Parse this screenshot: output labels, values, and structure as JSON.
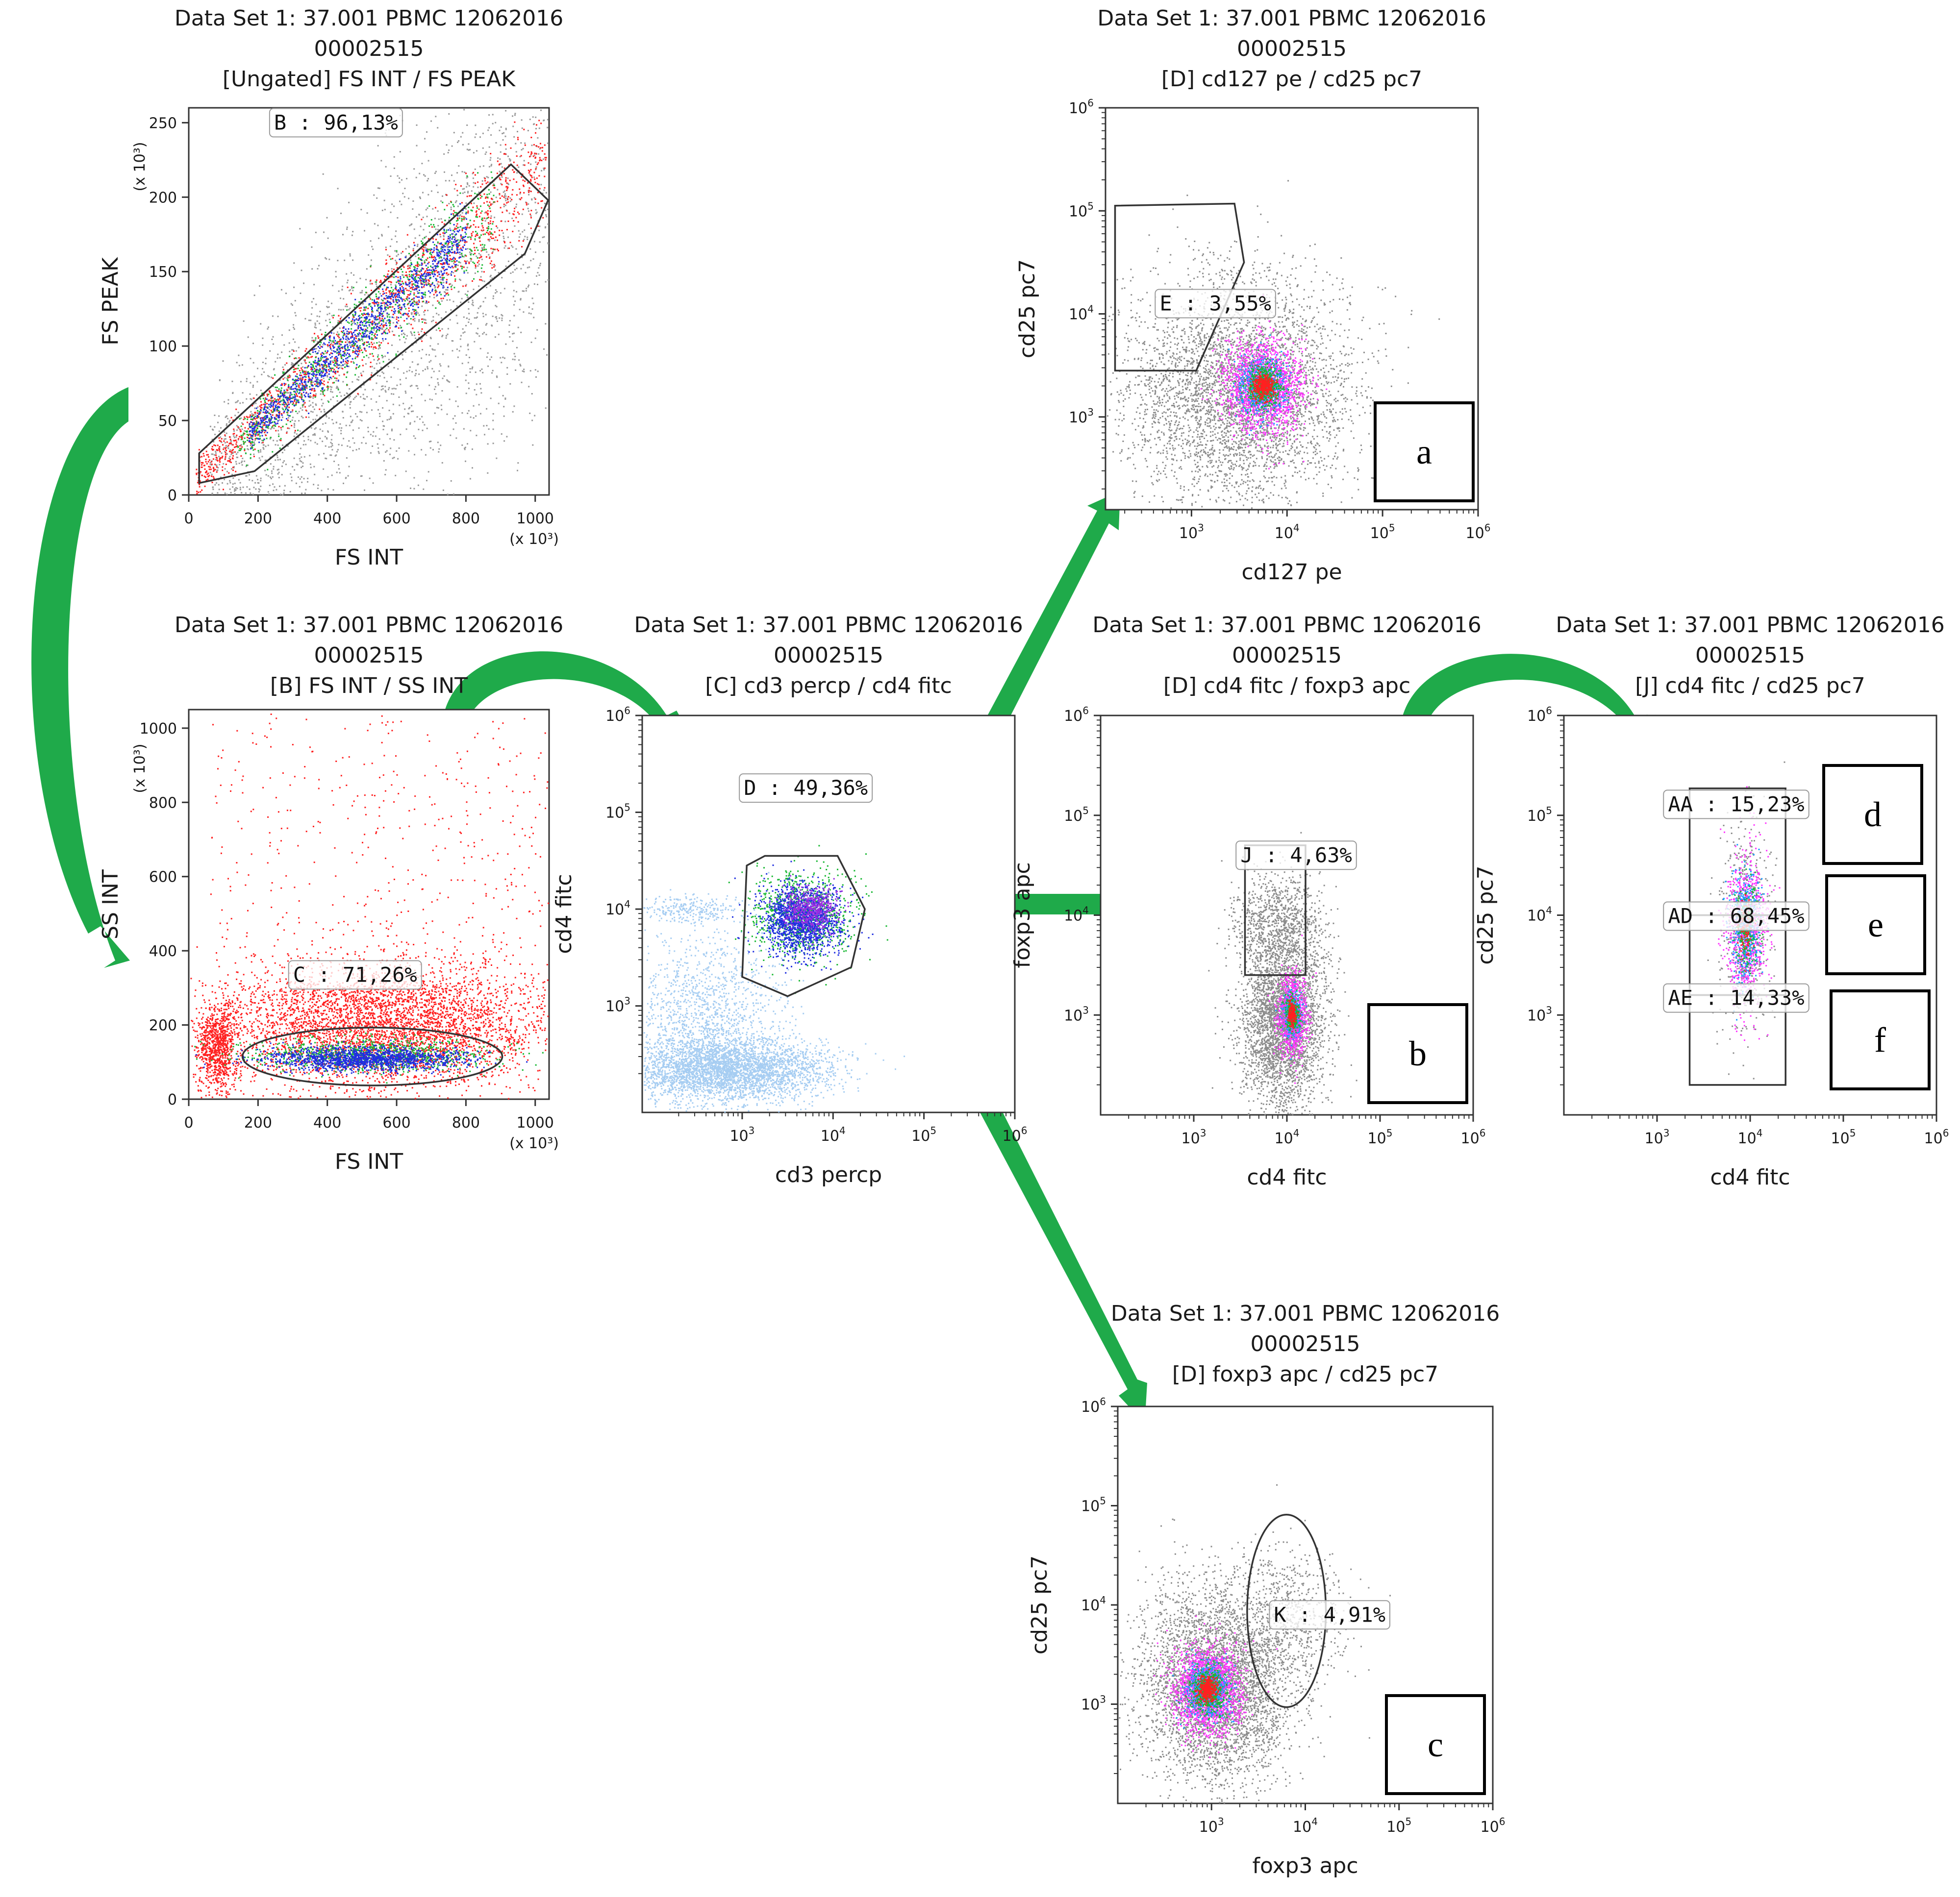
{
  "figure": {
    "plot_labels": [
      "a",
      "b",
      "c",
      "d",
      "e",
      "f"
    ],
    "arrow_color": "#1faa4a"
  },
  "chart_data": [
    {
      "id": "p1",
      "type": "scatter",
      "title": [
        "Data Set 1: 37.001 PBMC 12062016",
        "00002515",
        "[Ungated] FS INT / FS PEAK"
      ],
      "xlabel": "FS INT",
      "ylabel": "FS PEAK",
      "xscale": "linear",
      "yscale": "linear",
      "xlim": [
        0,
        1040
      ],
      "ylim": [
        0,
        260
      ],
      "xticks": [
        0,
        200,
        400,
        600,
        800,
        1000
      ],
      "yticks": [
        0,
        50,
        100,
        150,
        200,
        250
      ],
      "x_multiplier": "(x 10³)",
      "y_multiplier": "(x 10³)",
      "populations": [
        {
          "color": "#9a9a9a",
          "n": 2600,
          "dist": "band",
          "x": [
            60,
            1040
          ],
          "slope": 0.205,
          "offset": -12,
          "spread": 55
        },
        {
          "color": "#ff2020",
          "n": 1400,
          "dist": "band",
          "x": [
            20,
            1030
          ],
          "slope": 0.208,
          "offset": 8,
          "spread": 14
        },
        {
          "color": "#19b833",
          "n": 800,
          "dist": "band",
          "x": [
            140,
            880
          ],
          "slope": 0.21,
          "offset": 6,
          "spread": 13
        },
        {
          "color": "#1f2ee0",
          "n": 1000,
          "dist": "band",
          "x": [
            170,
            800
          ],
          "slope": 0.21,
          "offset": 6,
          "spread": 9
        }
      ],
      "gates": [
        {
          "name": "B",
          "percent": "96,13%",
          "label": "B : 96,13%",
          "shape": "polygon",
          "points": [
            [
              30,
              28
            ],
            [
              930,
              222
            ],
            [
              1040,
              198
            ],
            [
              970,
              162
            ],
            [
              190,
              16
            ],
            [
              30,
              8
            ]
          ],
          "label_at": [
            425,
            250
          ]
        }
      ]
    },
    {
      "id": "p2",
      "type": "scatter",
      "title": [
        "Data Set 1: 37.001 PBMC 12062016",
        "00002515",
        "[B] FS INT / SS INT"
      ],
      "xlabel": "FS INT",
      "ylabel": "SS INT",
      "xscale": "linear",
      "yscale": "linear",
      "xlim": [
        0,
        1040
      ],
      "ylim": [
        0,
        1050
      ],
      "xticks": [
        0,
        200,
        400,
        600,
        800,
        1000
      ],
      "yticks": [
        0,
        200,
        400,
        600,
        800,
        1000
      ],
      "x_multiplier": "(x 10³)",
      "y_multiplier": "(x 10³)",
      "populations": [
        {
          "color": "#ff2020",
          "n": 450,
          "dist": "uniform",
          "x": [
            60,
            1040
          ],
          "y": [
            250,
            1040
          ]
        },
        {
          "color": "#ff2020",
          "n": 4500,
          "dist": "gauss",
          "cx": 560,
          "cy": 200,
          "sx": 250,
          "sy": 85
        },
        {
          "color": "#ff2020",
          "n": 900,
          "dist": "gauss",
          "cx": 80,
          "cy": 140,
          "sx": 30,
          "sy": 60
        },
        {
          "color": "#19b833",
          "n": 900,
          "dist": "gauss",
          "cx": 520,
          "cy": 120,
          "sx": 170,
          "sy": 22
        },
        {
          "color": "#1f2ee0",
          "n": 1400,
          "dist": "gauss",
          "cx": 500,
          "cy": 110,
          "sx": 140,
          "sy": 16
        }
      ],
      "gates": [
        {
          "name": "C",
          "percent": "71,26%",
          "label": "C : 71,26%",
          "shape": "ellipse",
          "center": [
            530,
            115
          ],
          "rx": 375,
          "ry": 78,
          "label_at": [
            480,
            335
          ]
        }
      ]
    },
    {
      "id": "p3",
      "type": "scatter",
      "title": [
        "Data Set 1: 37.001 PBMC 12062016",
        "00002515",
        "[C] cd3 percp / cd4 fitc"
      ],
      "xlabel": "cd3 percp",
      "ylabel": "cd4 fitc",
      "xscale": "log",
      "yscale": "log",
      "xlim": [
        1.9,
        6.0
      ],
      "ylim": [
        1.9,
        6.0
      ],
      "xticks": [
        3,
        4,
        5,
        6
      ],
      "yticks": [
        3,
        4,
        5,
        6
      ],
      "populations": [
        {
          "color": "#a6cdf2",
          "n": 3400,
          "dist": "gauss",
          "cx": 2.85,
          "cy": 2.35,
          "sx": 0.55,
          "sy": 0.16
        },
        {
          "color": "#a6cdf2",
          "n": 1400,
          "dist": "gauss",
          "cx": 2.6,
          "cy": 2.9,
          "sx": 0.45,
          "sy": 0.45
        },
        {
          "color": "#a6cdf2",
          "n": 250,
          "dist": "gauss",
          "cx": 2.4,
          "cy": 4.0,
          "sx": 0.3,
          "sy": 0.08
        },
        {
          "color": "#19b833",
          "n": 900,
          "dist": "gauss",
          "cx": 3.65,
          "cy": 3.95,
          "sx": 0.28,
          "sy": 0.22
        },
        {
          "color": "#1f2ee0",
          "n": 1400,
          "dist": "gauss",
          "cx": 3.65,
          "cy": 3.9,
          "sx": 0.22,
          "sy": 0.18
        },
        {
          "color": "#9b2fe0",
          "n": 500,
          "dist": "gauss",
          "cx": 3.75,
          "cy": 4.0,
          "sx": 0.15,
          "sy": 0.12
        }
      ],
      "gates": [
        {
          "name": "D",
          "percent": "49,36%",
          "label": "D : 49,36%",
          "shape": "polygon",
          "points": [
            [
              3.05,
              4.45
            ],
            [
              3.25,
              4.55
            ],
            [
              4.05,
              4.55
            ],
            [
              4.35,
              4.0
            ],
            [
              4.2,
              3.4
            ],
            [
              3.5,
              3.1
            ],
            [
              3.0,
              3.3
            ],
            [
              3.05,
              4.45
            ]
          ],
          "label_at": [
            3.7,
            5.25
          ]
        }
      ]
    },
    {
      "id": "p4",
      "type": "scatter",
      "title": [
        "Data Set 1: 37.001 PBMC 12062016",
        "00002515",
        "[D] cd127 pe / cd25 pc7"
      ],
      "xlabel": "cd127 pe",
      "ylabel": "cd25 pc7",
      "xscale": "log",
      "yscale": "log",
      "xlim": [
        2.1,
        6.0
      ],
      "ylim": [
        2.1,
        6.0
      ],
      "xticks": [
        3,
        4,
        5,
        6
      ],
      "yticks": [
        3,
        4,
        5,
        6
      ],
      "populations": [
        {
          "color": "#8c8c8c",
          "n": 4200,
          "dist": "gauss",
          "cx": 3.5,
          "cy": 3.25,
          "sx": 0.6,
          "sy": 0.55
        },
        {
          "color": "#ff35ff",
          "n": 1800,
          "dist": "gauss",
          "cx": 3.75,
          "cy": 3.3,
          "sx": 0.2,
          "sy": 0.22
        },
        {
          "color": "#1a9cff",
          "n": 600,
          "dist": "gauss",
          "cx": 3.75,
          "cy": 3.3,
          "sx": 0.12,
          "sy": 0.14
        },
        {
          "color": "#19b833",
          "n": 500,
          "dist": "gauss",
          "cx": 3.75,
          "cy": 3.3,
          "sx": 0.09,
          "sy": 0.1
        },
        {
          "color": "#ff2020",
          "n": 350,
          "dist": "gauss",
          "cx": 3.75,
          "cy": 3.3,
          "sx": 0.05,
          "sy": 0.06
        }
      ],
      "gates": [
        {
          "name": "E",
          "percent": "3,55%",
          "label": "E : 3,55%",
          "shape": "polygon",
          "points": [
            [
              2.2,
              5.05
            ],
            [
              3.45,
              5.07
            ],
            [
              3.55,
              4.5
            ],
            [
              3.05,
              3.45
            ],
            [
              2.2,
              3.45
            ],
            [
              2.2,
              5.05
            ]
          ],
          "label_at": [
            3.25,
            4.1
          ]
        }
      ]
    },
    {
      "id": "p5",
      "type": "scatter",
      "title": [
        "Data Set 1: 37.001 PBMC 12062016",
        "00002515",
        "[D] cd4 fitc / foxp3 apc"
      ],
      "xlabel": "cd4 fitc",
      "ylabel": "foxp3 apc",
      "xscale": "log",
      "yscale": "log",
      "xlim": [
        2.0,
        6.0
      ],
      "ylim": [
        2.0,
        6.0
      ],
      "xticks": [
        3,
        4,
        5,
        6
      ],
      "yticks": [
        3,
        4,
        5,
        6
      ],
      "populations": [
        {
          "color": "#8c8c8c",
          "n": 3300,
          "dist": "gauss",
          "cx": 3.95,
          "cy": 2.95,
          "sx": 0.22,
          "sy": 0.45
        },
        {
          "color": "#8c8c8c",
          "n": 800,
          "dist": "gauss",
          "cx": 3.9,
          "cy": 3.95,
          "sx": 0.25,
          "sy": 0.25
        },
        {
          "color": "#ff35ff",
          "n": 900,
          "dist": "gauss",
          "cx": 4.05,
          "cy": 3.0,
          "sx": 0.08,
          "sy": 0.2
        },
        {
          "color": "#1a9cff",
          "n": 300,
          "dist": "gauss",
          "cx": 4.05,
          "cy": 3.02,
          "sx": 0.05,
          "sy": 0.12
        },
        {
          "color": "#19b833",
          "n": 250,
          "dist": "gauss",
          "cx": 4.05,
          "cy": 3.02,
          "sx": 0.04,
          "sy": 0.09
        },
        {
          "color": "#ff2020",
          "n": 160,
          "dist": "gauss",
          "cx": 4.05,
          "cy": 3.02,
          "sx": 0.025,
          "sy": 0.06
        }
      ],
      "gates": [
        {
          "name": "J",
          "percent": "4,63%",
          "label": "J : 4,63%",
          "shape": "rect",
          "x": [
            3.55,
            4.2
          ],
          "y": [
            3.4,
            4.7
          ],
          "label_at": [
            4.1,
            4.6
          ]
        }
      ]
    },
    {
      "id": "p6",
      "type": "scatter",
      "title": [
        "Data Set 1: 37.001 PBMC 12062016",
        "00002515",
        "[J] cd4 fitc / cd25 pc7"
      ],
      "xlabel": "cd4 fitc",
      "ylabel": "cd25 pc7",
      "xscale": "log",
      "yscale": "log",
      "xlim": [
        2.0,
        6.0
      ],
      "ylim": [
        2.0,
        6.0
      ],
      "xticks": [
        3,
        4,
        5,
        6
      ],
      "yticks": [
        3,
        4,
        5,
        6
      ],
      "populations": [
        {
          "color": "#8c8c8c",
          "n": 500,
          "dist": "gauss",
          "cx": 3.95,
          "cy": 3.85,
          "sx": 0.14,
          "sy": 0.55
        },
        {
          "color": "#ff35ff",
          "n": 800,
          "dist": "gauss",
          "cx": 3.95,
          "cy": 3.9,
          "sx": 0.11,
          "sy": 0.38
        },
        {
          "color": "#1a9cff",
          "n": 500,
          "dist": "gauss",
          "cx": 3.95,
          "cy": 3.9,
          "sx": 0.08,
          "sy": 0.28
        },
        {
          "color": "#19b833",
          "n": 200,
          "dist": "gauss",
          "cx": 3.95,
          "cy": 3.9,
          "sx": 0.06,
          "sy": 0.2
        },
        {
          "color": "#ff2020",
          "n": 100,
          "dist": "gauss",
          "cx": 3.95,
          "cy": 3.9,
          "sx": 0.04,
          "sy": 0.14
        }
      ],
      "gates": [
        {
          "name": "AA",
          "percent": "15,23%",
          "label": "AA : 15,23%",
          "shape": "rect",
          "x": [
            3.35,
            4.38
          ],
          "y": [
            4.0,
            5.27
          ],
          "label_at": [
            3.85,
            5.11
          ]
        },
        {
          "name": "AD",
          "percent": "68,45%",
          "label": "AD : 68,45%",
          "shape": "rect",
          "x": [
            3.35,
            4.38
          ],
          "y": [
            3.2,
            4.0
          ],
          "label_at": [
            3.85,
            3.99
          ]
        },
        {
          "name": "AE",
          "percent": "14,33%",
          "label": "AE : 14,33%",
          "shape": "rect",
          "x": [
            3.35,
            4.38
          ],
          "y": [
            2.3,
            3.2
          ],
          "label_at": [
            3.85,
            3.17
          ]
        }
      ]
    },
    {
      "id": "p7",
      "type": "scatter",
      "title": [
        "Data Set 1: 37.001 PBMC 12062016",
        "00002515",
        "[D] foxp3 apc / cd25 pc7"
      ],
      "xlabel": "foxp3 apc",
      "ylabel": "cd25 pc7",
      "xscale": "log",
      "yscale": "log",
      "xlim": [
        2.0,
        6.0
      ],
      "ylim": [
        2.0,
        6.0
      ],
      "xticks": [
        3,
        4,
        5,
        6
      ],
      "yticks": [
        3,
        4,
        5,
        6
      ],
      "populations": [
        {
          "color": "#8c8c8c",
          "n": 4200,
          "dist": "gauss",
          "cx": 3.05,
          "cy": 3.2,
          "sx": 0.4,
          "sy": 0.5
        },
        {
          "color": "#8c8c8c",
          "n": 600,
          "dist": "gauss",
          "cx": 3.85,
          "cy": 3.9,
          "sx": 0.3,
          "sy": 0.35
        },
        {
          "color": "#ff35ff",
          "n": 1800,
          "dist": "gauss",
          "cx": 2.95,
          "cy": 3.15,
          "sx": 0.18,
          "sy": 0.22
        },
        {
          "color": "#1a9cff",
          "n": 600,
          "dist": "gauss",
          "cx": 2.95,
          "cy": 3.15,
          "sx": 0.12,
          "sy": 0.14
        },
        {
          "color": "#19b833",
          "n": 500,
          "dist": "gauss",
          "cx": 2.95,
          "cy": 3.15,
          "sx": 0.09,
          "sy": 0.11
        },
        {
          "color": "#ff2020",
          "n": 350,
          "dist": "gauss",
          "cx": 2.95,
          "cy": 3.15,
          "sx": 0.05,
          "sy": 0.06
        }
      ],
      "gates": [
        {
          "name": "K",
          "percent": "4,91%",
          "label": "K : 4,91%",
          "shape": "ellipse",
          "center": [
            3.8,
            3.94
          ],
          "rx": 0.42,
          "ry": 0.97,
          "label_at": [
            4.26,
            3.9
          ]
        }
      ]
    }
  ]
}
